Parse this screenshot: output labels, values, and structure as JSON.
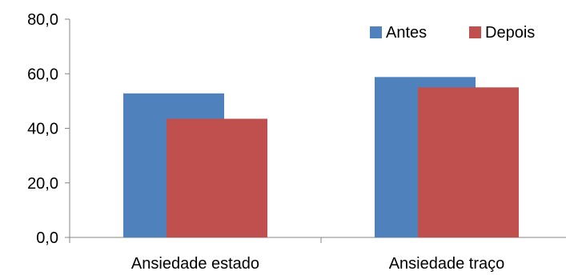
{
  "chart_data": {
    "type": "bar",
    "categories": [
      "Ansiedade estado",
      "Ansiedade traço"
    ],
    "series": [
      {
        "name": "Antes",
        "values": [
          52.8,
          58.8
        ],
        "color": "#4F81BD"
      },
      {
        "name": "Depois",
        "values": [
          43.5,
          55.0
        ],
        "color": "#C0504D"
      }
    ],
    "yticks": [
      "0,0",
      "20,0",
      "40,0",
      "60,0",
      "80,0"
    ],
    "ylim": [
      0,
      80
    ],
    "legend_position": "top-right",
    "grid": false,
    "overlapping_bars": true
  }
}
